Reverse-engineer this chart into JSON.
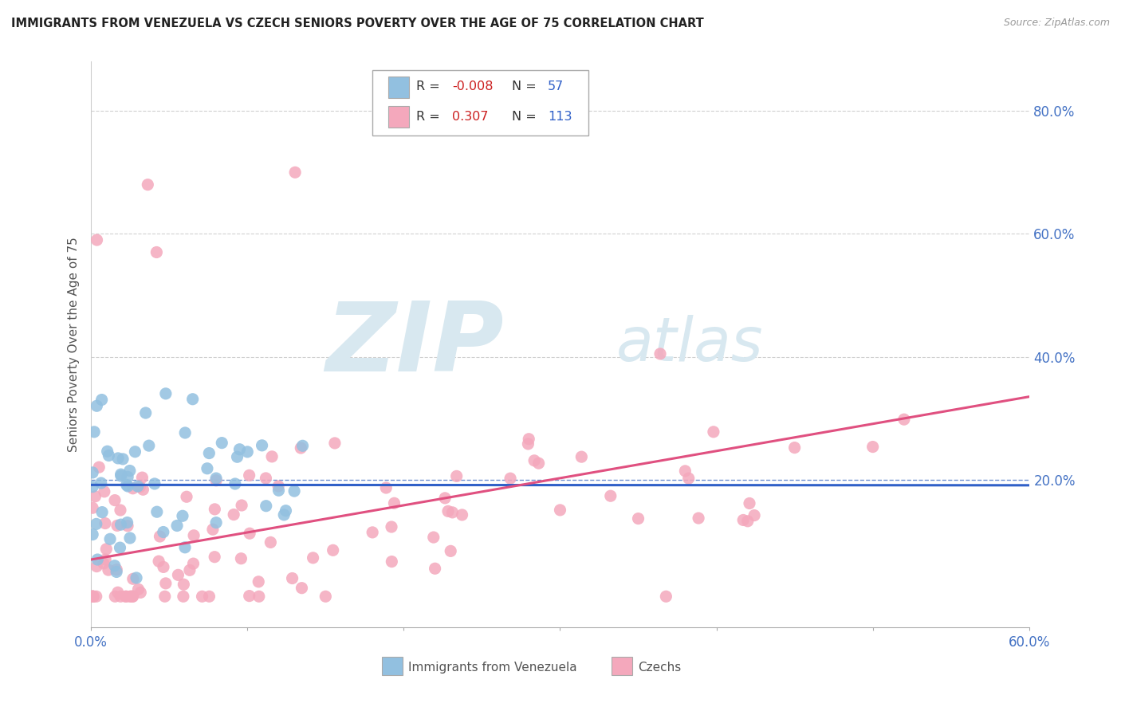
{
  "title": "IMMIGRANTS FROM VENEZUELA VS CZECH SENIORS POVERTY OVER THE AGE OF 75 CORRELATION CHART",
  "source": "Source: ZipAtlas.com",
  "ylabel": "Seniors Poverty Over the Age of 75",
  "ytick_vals": [
    0.0,
    0.2,
    0.4,
    0.6,
    0.8
  ],
  "ytick_labels": [
    "",
    "20.0%",
    "40.0%",
    "60.0%",
    "80.0%"
  ],
  "xlim": [
    0.0,
    0.6
  ],
  "ylim": [
    -0.04,
    0.88
  ],
  "legend1_label_R": "-0.008",
  "legend1_label_N": "57",
  "legend2_label_R": "0.307",
  "legend2_label_N": "113",
  "legend_label1": "Immigrants from Venezuela",
  "legend_label2": "Czechs",
  "blue_color": "#92C0E0",
  "pink_color": "#F4A8BC",
  "blue_line_color": "#3060C8",
  "pink_line_color": "#E05080",
  "tick_color": "#4472C4",
  "grid_color": "#D0D0D0",
  "grid_color_20": "#7090D0",
  "watermark_zip": "ZIP",
  "watermark_atlas": "atlas"
}
